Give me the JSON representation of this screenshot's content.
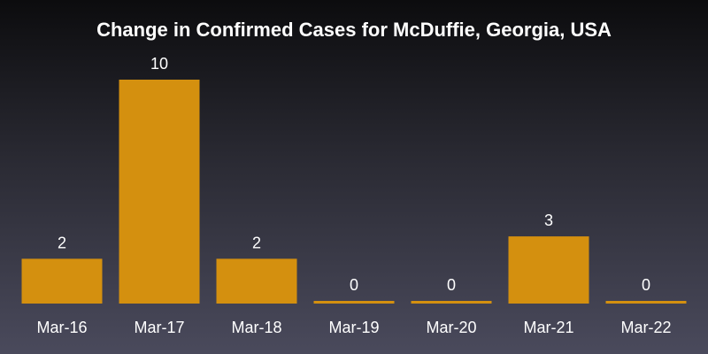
{
  "chart_data": {
    "type": "bar",
    "title": "Change in Confirmed Cases for McDuffie, Georgia, USA",
    "categories": [
      "Mar-16",
      "Mar-17",
      "Mar-18",
      "Mar-19",
      "Mar-20",
      "Mar-21",
      "Mar-22"
    ],
    "values": [
      2,
      10,
      2,
      0,
      0,
      3,
      0
    ],
    "xlabel": "",
    "ylabel": "",
    "ylim": [
      0,
      10
    ],
    "grid": false,
    "bar_color": "#D4900F",
    "background_colors": [
      "#0c0c0e",
      "#4a4a5c"
    ]
  }
}
